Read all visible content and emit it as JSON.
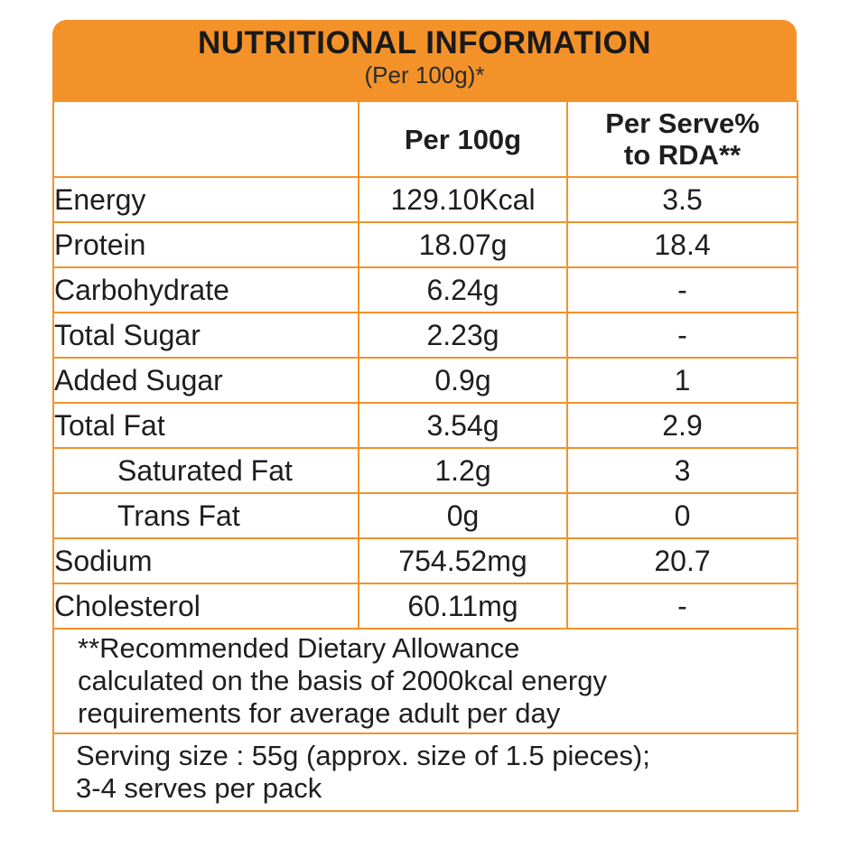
{
  "header": {
    "title": "NUTRITIONAL INFORMATION",
    "subtitle": "(Per 100g)*"
  },
  "table": {
    "columns": [
      "",
      "Per 100g",
      "Per Serve% to RDA**"
    ],
    "column_lines": {
      "per100": "Per 100g",
      "rda_line1": "Per Serve%",
      "rda_line2": "to RDA**"
    },
    "rows": [
      {
        "name": "Energy",
        "per_100g": "129.10Kcal",
        "rda": "3.5"
      },
      {
        "name": "Protein",
        "per_100g": "18.07g",
        "rda": "18.4"
      },
      {
        "name": "Carbohydrate",
        "per_100g": "6.24g",
        "rda": "-"
      },
      {
        "name": "Total Sugar",
        "per_100g": "2.23g",
        "rda": "-"
      },
      {
        "name": "Added Sugar",
        "per_100g": "0.9g",
        "rda": "1"
      },
      {
        "name": "Total Fat",
        "per_100g": "3.54g",
        "rda": "2.9"
      },
      {
        "name": "Saturated Fat",
        "per_100g": "1.2g",
        "rda": "3"
      },
      {
        "name": "Trans Fat",
        "per_100g": "0g",
        "rda": "0"
      },
      {
        "name": "Sodium",
        "per_100g": "754.52mg",
        "rda": "20.7"
      },
      {
        "name": "Cholesterol",
        "per_100g": "60.11mg",
        "rda": "-"
      }
    ]
  },
  "notes": {
    "rda_line1": "**Recommended Dietary Allowance",
    "rda_line2": "calculated on the basis of 2000kcal energy",
    "rda_line3": "requirements for average adult per day",
    "serving_line1": "Serving size : 55g (approx. size of 1.5 pieces);",
    "serving_line2": "3-4 serves per pack"
  },
  "colors": {
    "accent": "#f4922a",
    "text": "#1e1e1e"
  }
}
